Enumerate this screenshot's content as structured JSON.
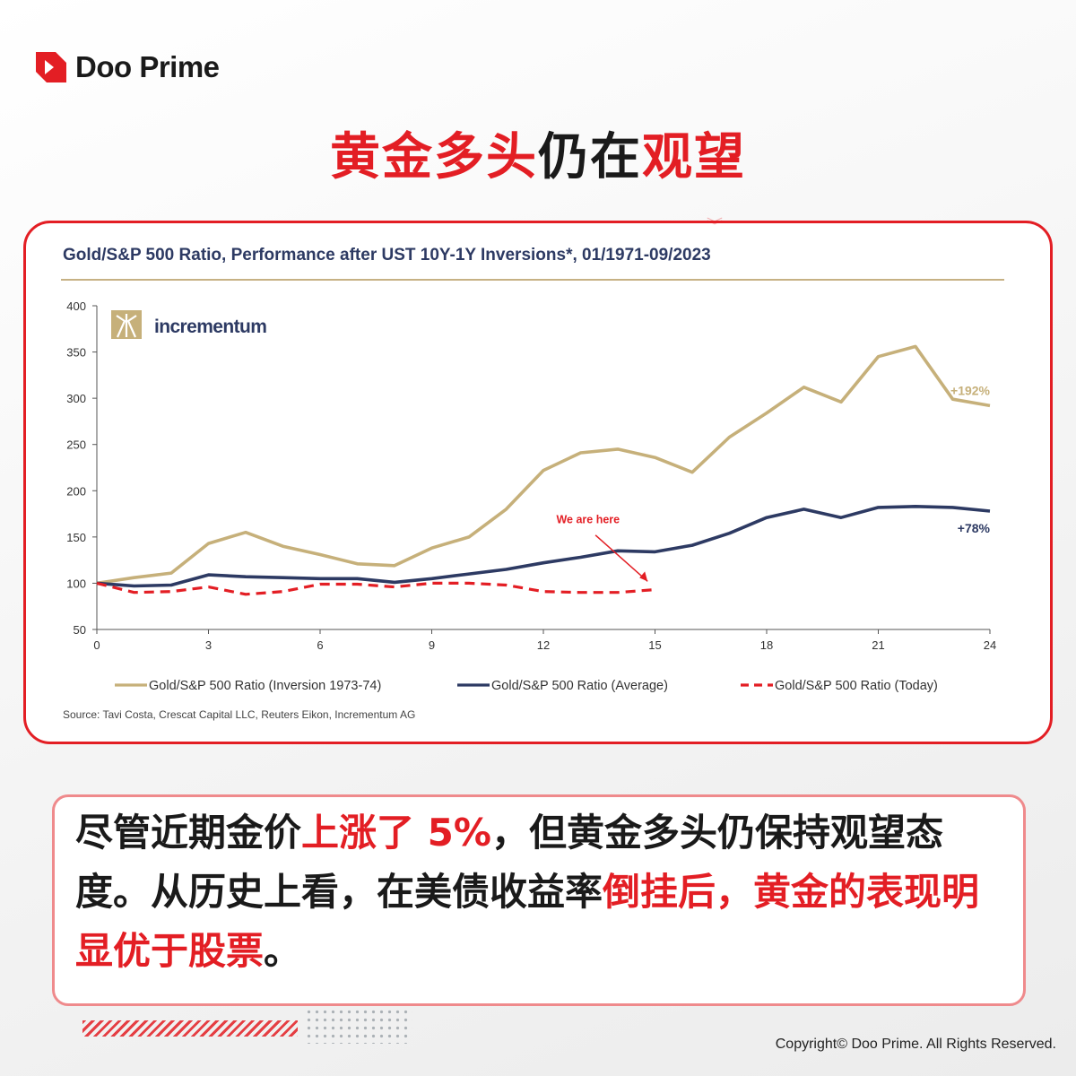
{
  "brand": {
    "name": "Doo Prime",
    "accent": "#e31e24"
  },
  "headline": {
    "part1": "黄金多头",
    "part2": "仍在",
    "part3": "观望"
  },
  "chart_meta": {
    "title": "Gold/S&P 500 Ratio, Performance after UST 10Y-1Y Inversions*, 01/1971-09/2023",
    "publisher_logo": "incrementum",
    "source": "Source: Tavi Costa, Crescat Capital LLC, Reuters Eikon, Incrementum AG",
    "annotation": "We are here"
  },
  "chart_data": {
    "type": "line",
    "title": "Gold/S&P 500 Ratio, Performance after UST 10Y-1Y Inversions*, 01/1971-09/2023",
    "xlabel": "",
    "ylabel": "",
    "xlim": [
      0,
      24
    ],
    "ylim": [
      50,
      400
    ],
    "x_ticks": [
      0,
      3,
      6,
      9,
      12,
      15,
      18,
      21,
      24
    ],
    "y_ticks": [
      50,
      100,
      150,
      200,
      250,
      300,
      350,
      400
    ],
    "grid": false,
    "legend_position": "bottom",
    "series": [
      {
        "name": "Gold/S&P 500 Ratio (Inversion 1973-74)",
        "color": "#c6b07a",
        "style": "solid",
        "end_label": "+192%",
        "x": [
          0,
          1,
          2,
          3,
          4,
          5,
          6,
          7,
          8,
          9,
          10,
          11,
          12,
          13,
          14,
          15,
          16,
          17,
          18,
          19,
          20,
          21,
          22,
          23,
          24
        ],
        "values": [
          100,
          106,
          111,
          143,
          155,
          140,
          131,
          121,
          119,
          138,
          150,
          180,
          222,
          241,
          245,
          236,
          220,
          258,
          284,
          312,
          296,
          345,
          356,
          299,
          292
        ]
      },
      {
        "name": "Gold/S&P 500 Ratio (Average)",
        "color": "#2d3a63",
        "style": "solid",
        "end_label": "+78%",
        "x": [
          0,
          1,
          2,
          3,
          4,
          5,
          6,
          7,
          8,
          9,
          10,
          11,
          12,
          13,
          14,
          15,
          16,
          17,
          18,
          19,
          20,
          21,
          22,
          23,
          24
        ],
        "values": [
          100,
          97,
          98,
          109,
          107,
          106,
          105,
          105,
          101,
          105,
          110,
          115,
          122,
          128,
          135,
          134,
          141,
          154,
          171,
          180,
          171,
          182,
          183,
          182,
          178
        ]
      },
      {
        "name": "Gold/S&P 500 Ratio (Today)",
        "color": "#e31e24",
        "style": "dashed",
        "end_label": "",
        "x": [
          0,
          1,
          2,
          3,
          4,
          5,
          6,
          7,
          8,
          9,
          10,
          11,
          12,
          13,
          14,
          15
        ],
        "values": [
          100,
          90,
          91,
          96,
          88,
          91,
          99,
          99,
          96,
          100,
          100,
          98,
          91,
          90,
          90,
          93
        ]
      }
    ]
  },
  "body": {
    "s1": "尽管近期金价",
    "s2": "上涨了 5%",
    "s3": "，但黄金多头仍保持观望态度。从历史上看，在美债收益率",
    "s4": "倒挂后，黄金的表现明显优于股票",
    "s5": "。"
  },
  "footer": {
    "copyright": "Copyright© Doo Prime. All Rights Reserved."
  }
}
